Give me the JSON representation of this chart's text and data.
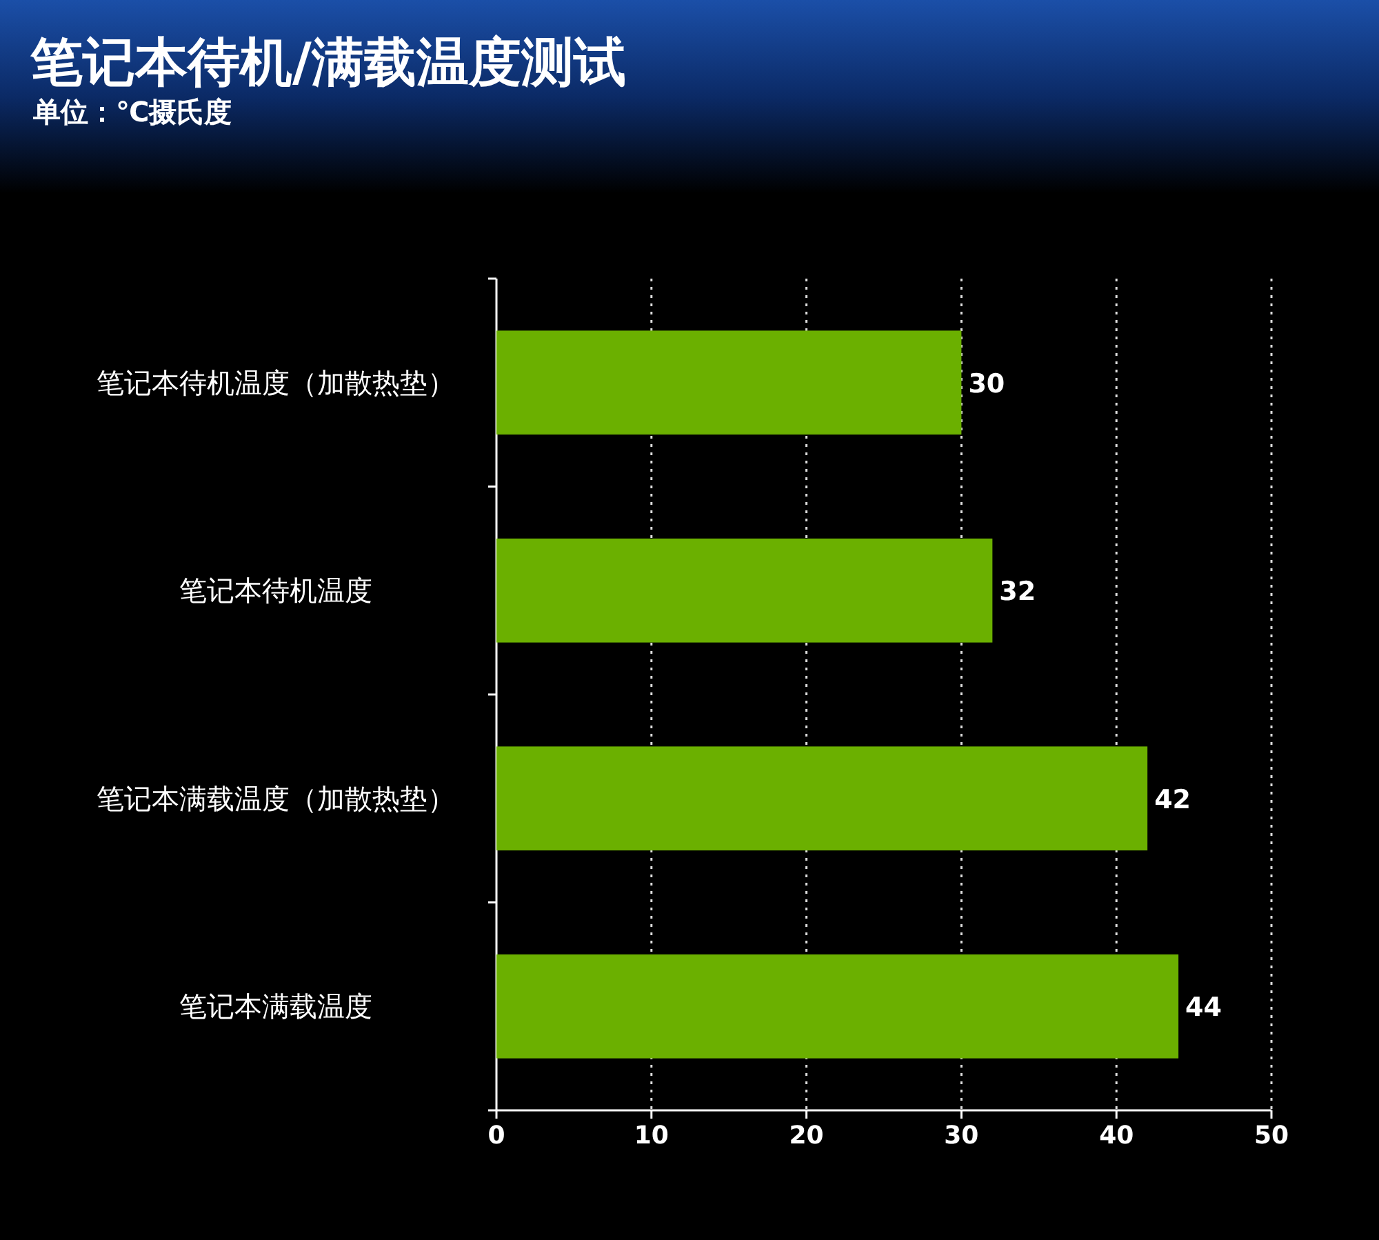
{
  "chart_data": {
    "type": "bar",
    "orientation": "horizontal",
    "title": "笔记本待机/满载温度测试",
    "subtitle": "单位：℃摄氏度",
    "categories": [
      "笔记本待机温度（加散热垫）",
      "笔记本待机温度",
      "笔记本满载温度（加散热垫）",
      "笔记本满载温度"
    ],
    "values": [
      30,
      32,
      42,
      44
    ],
    "color": "#6bb000",
    "xlim": [
      0,
      50
    ],
    "xticks": [
      0,
      10,
      20,
      30,
      40,
      50
    ],
    "grid": "x",
    "data_labels": true
  }
}
